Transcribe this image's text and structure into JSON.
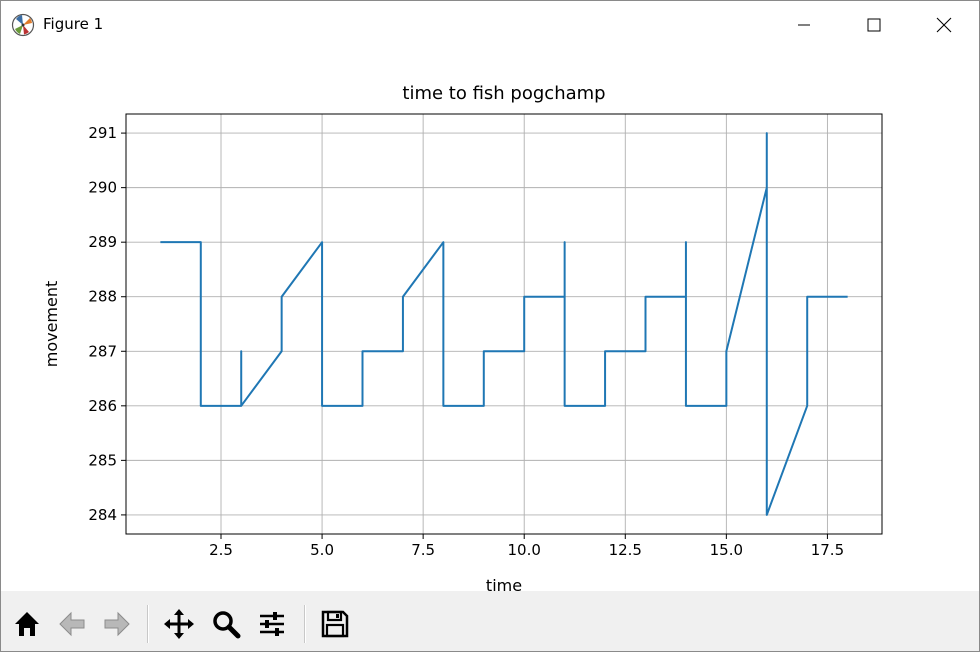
{
  "window": {
    "title": "Figure 1",
    "controls": [
      "minimize-icon",
      "maximize-icon",
      "close-icon"
    ]
  },
  "toolbar": {
    "buttons": [
      "home-icon",
      "back-icon",
      "forward-icon",
      "pan-icon",
      "zoom-icon",
      "configure-subplots-icon",
      "save-icon"
    ]
  },
  "chart_data": {
    "type": "line",
    "title": "time to fish pogchamp",
    "xlabel": "time",
    "ylabel": "movement",
    "xlim": [
      0.15,
      18.85
    ],
    "ylim": [
      283.65,
      291.35
    ],
    "xticks": [
      "2.5",
      "5.0",
      "7.5",
      "10.0",
      "12.5",
      "15.0",
      "17.5"
    ],
    "xtick_values": [
      2.5,
      5.0,
      7.5,
      10.0,
      12.5,
      15.0,
      17.5
    ],
    "yticks": [
      "284",
      "285",
      "286",
      "287",
      "288",
      "289",
      "290",
      "291"
    ],
    "ytick_values": [
      284,
      285,
      286,
      287,
      288,
      289,
      290,
      291
    ],
    "grid": true,
    "series": [
      {
        "color": "#1f77b4",
        "x": [
          1,
          2,
          2,
          3,
          3,
          3,
          4,
          4,
          5,
          5,
          6,
          6,
          7,
          7,
          8,
          8,
          9,
          9,
          10,
          10,
          11,
          11,
          11,
          11,
          12,
          12,
          13,
          13,
          14,
          14,
          14,
          14,
          15,
          15,
          16,
          16,
          16,
          16,
          17,
          17,
          18
        ],
        "y": [
          289,
          289,
          286,
          286,
          287,
          286,
          287,
          288,
          289,
          286,
          286,
          287,
          287,
          288,
          289,
          286,
          286,
          287,
          287,
          288,
          288,
          289,
          288,
          286,
          286,
          287,
          287,
          288,
          288,
          289,
          288,
          286,
          286,
          287,
          290,
          291,
          290,
          284,
          286,
          288,
          288
        ]
      }
    ]
  }
}
